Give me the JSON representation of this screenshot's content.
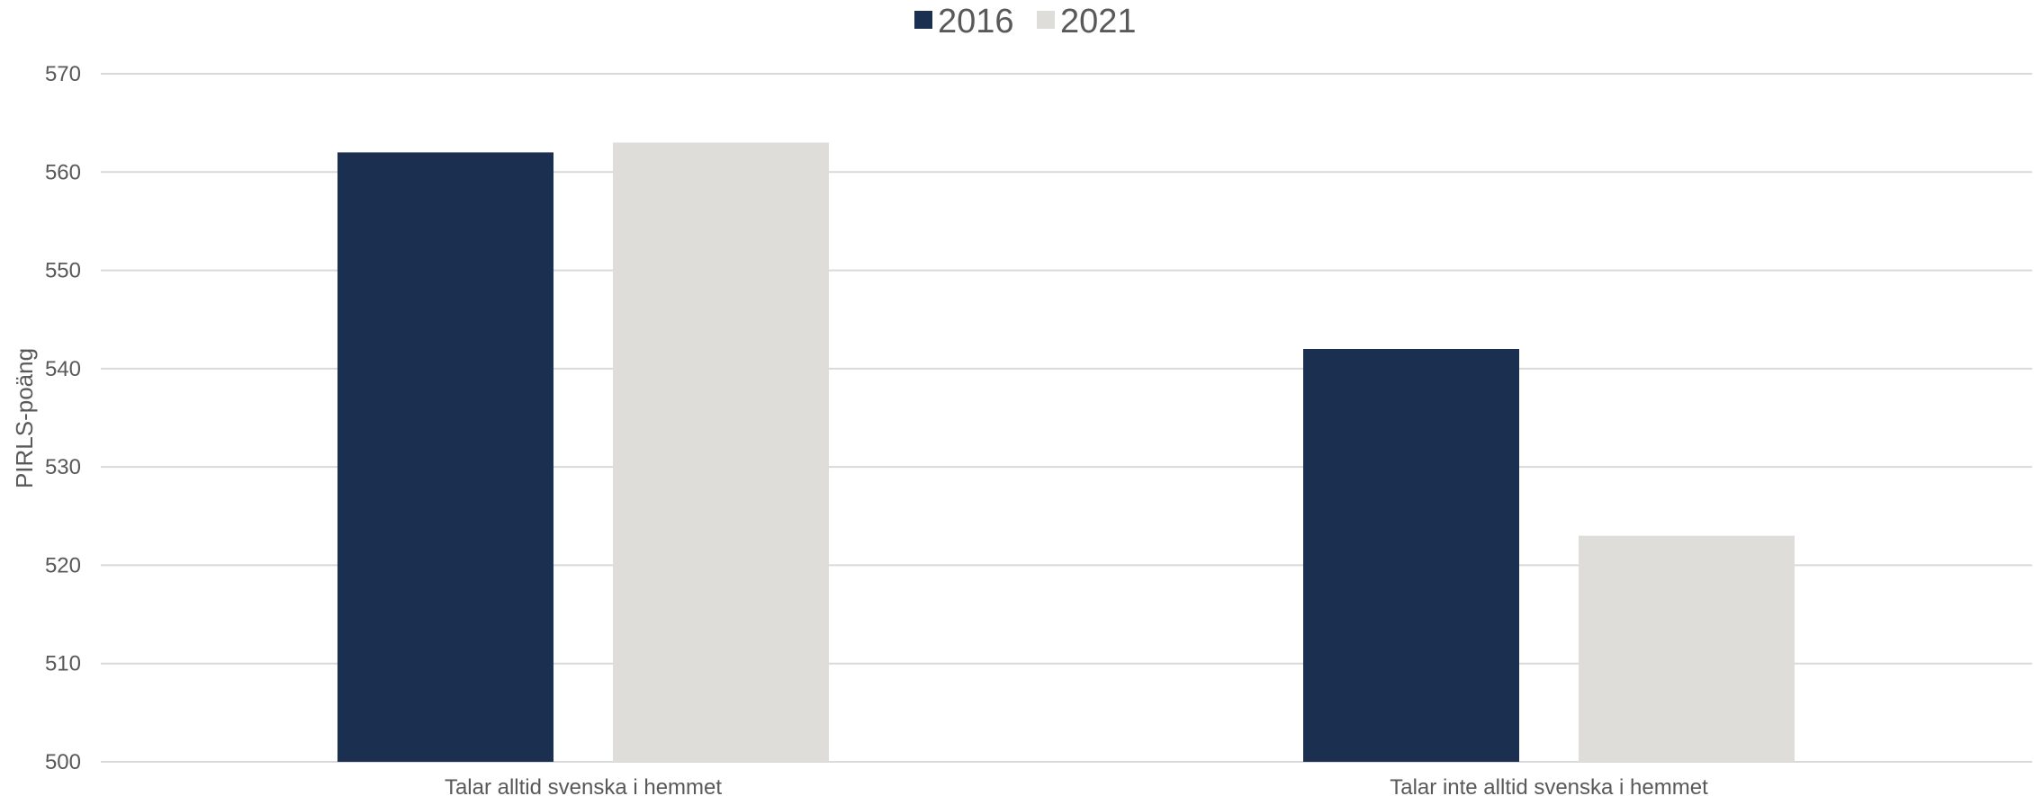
{
  "chart_data": {
    "type": "bar",
    "title": "",
    "xlabel": "",
    "ylabel": "PIRLS-poäng",
    "ylim": [
      500,
      570
    ],
    "yticks": [
      500,
      510,
      520,
      530,
      540,
      550,
      560,
      570
    ],
    "grid": true,
    "legend_position": "top-center",
    "categories": [
      "Talar alltid svenska i hemmet",
      "Talar inte alltid svenska i hemmet"
    ],
    "series": [
      {
        "name": "2016",
        "color": "#1b2f50",
        "values": [
          562,
          542
        ]
      },
      {
        "name": "2021",
        "color": "#deddda",
        "values": [
          563,
          523
        ]
      }
    ]
  }
}
